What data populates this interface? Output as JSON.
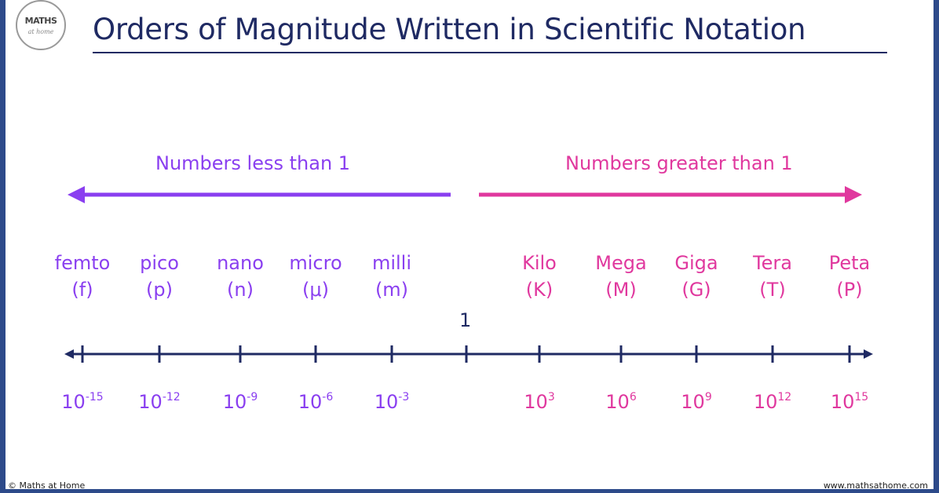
{
  "logo": {
    "text": "MATHS",
    "sub": "at home"
  },
  "title": "Orders of Magnitude Written in Scientific Notation",
  "ranges": {
    "less": "Numbers less than 1",
    "greater": "Numbers greater than 1"
  },
  "center_label": "1",
  "prefixes": [
    {
      "name": "femto",
      "symbol": "(f)",
      "base": "10",
      "exp": "-15",
      "side": "less"
    },
    {
      "name": "pico",
      "symbol": "(p)",
      "base": "10",
      "exp": "-12",
      "side": "less"
    },
    {
      "name": "nano",
      "symbol": "(n)",
      "base": "10",
      "exp": "-9",
      "side": "less"
    },
    {
      "name": "micro",
      "symbol": "(μ)",
      "base": "10",
      "exp": "-6",
      "side": "less"
    },
    {
      "name": "milli",
      "symbol": "(m)",
      "base": "10",
      "exp": "-3",
      "side": "less"
    },
    {
      "name": "Kilo",
      "symbol": "(K)",
      "base": "10",
      "exp": "3",
      "side": "greater"
    },
    {
      "name": "Mega",
      "symbol": "(M)",
      "base": "10",
      "exp": "6",
      "side": "greater"
    },
    {
      "name": "Giga",
      "symbol": "(G)",
      "base": "10",
      "exp": "9",
      "side": "greater"
    },
    {
      "name": "Tera",
      "symbol": "(T)",
      "base": "10",
      "exp": "12",
      "side": "greater"
    },
    {
      "name": "Peta",
      "symbol": "(P)",
      "base": "10",
      "exp": "15",
      "side": "greater"
    }
  ],
  "footer": {
    "left": "© Maths at Home",
    "right": "www.mathsathome.com"
  },
  "colors": {
    "title": "#1f2a63",
    "less": "#8a3ff0",
    "greater": "#e0389e",
    "axis": "#1f2a63"
  }
}
